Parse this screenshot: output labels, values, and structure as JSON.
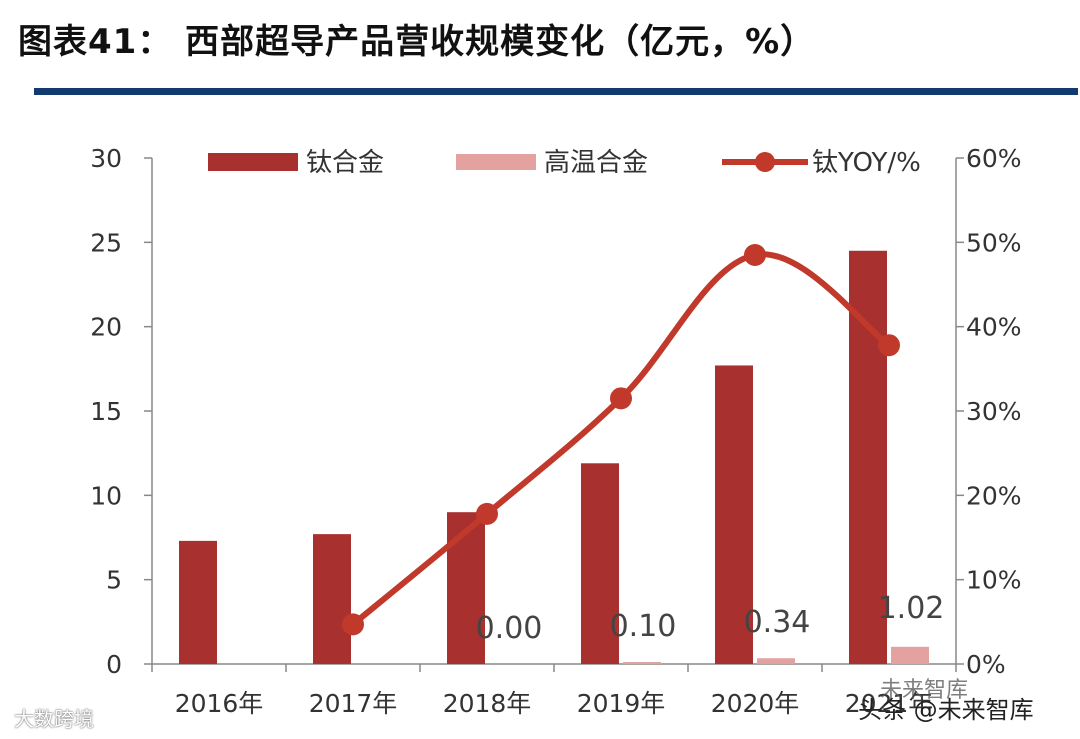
{
  "title": "图表41：  西部超导产品营收规模变化（亿元，%）",
  "watermarks": {
    "left": "大数跨境",
    "right_top": "未来智库",
    "right": "头条 @未来智库"
  },
  "chart_data": {
    "type": "bar",
    "categories": [
      "2016年",
      "2017年",
      "2018年",
      "2019年",
      "2020年",
      "2021年"
    ],
    "series": [
      {
        "name": "钛合金",
        "kind": "bar",
        "axis": "left",
        "color": "#a8302e",
        "values": [
          7.3,
          7.7,
          9.0,
          11.9,
          17.7,
          24.5
        ]
      },
      {
        "name": "高温合金",
        "kind": "bar",
        "axis": "left",
        "color": "#e3a2a0",
        "values": [
          0.0,
          0.0,
          0.0,
          0.1,
          0.34,
          1.02
        ]
      },
      {
        "name": "钛YOY/%",
        "kind": "line",
        "axis": "right",
        "color": "#c0392b",
        "values": [
          null,
          4.7,
          17.8,
          31.5,
          48.5,
          37.8
        ]
      }
    ],
    "data_labels": [
      {
        "category": "2018年",
        "text": "0.00"
      },
      {
        "category": "2019年",
        "text": "0.10"
      },
      {
        "category": "2020年",
        "text": "0.34"
      },
      {
        "category": "2021年",
        "text": "1.02"
      }
    ],
    "y_left": {
      "ylim": [
        0,
        30
      ],
      "ticks": [
        0,
        5,
        10,
        15,
        20,
        25,
        30
      ]
    },
    "y_right": {
      "ylim": [
        0,
        60
      ],
      "ticks": [
        "0%",
        "10%",
        "20%",
        "30%",
        "40%",
        "50%",
        "60%"
      ]
    },
    "legend_position": "top",
    "grid": false
  }
}
